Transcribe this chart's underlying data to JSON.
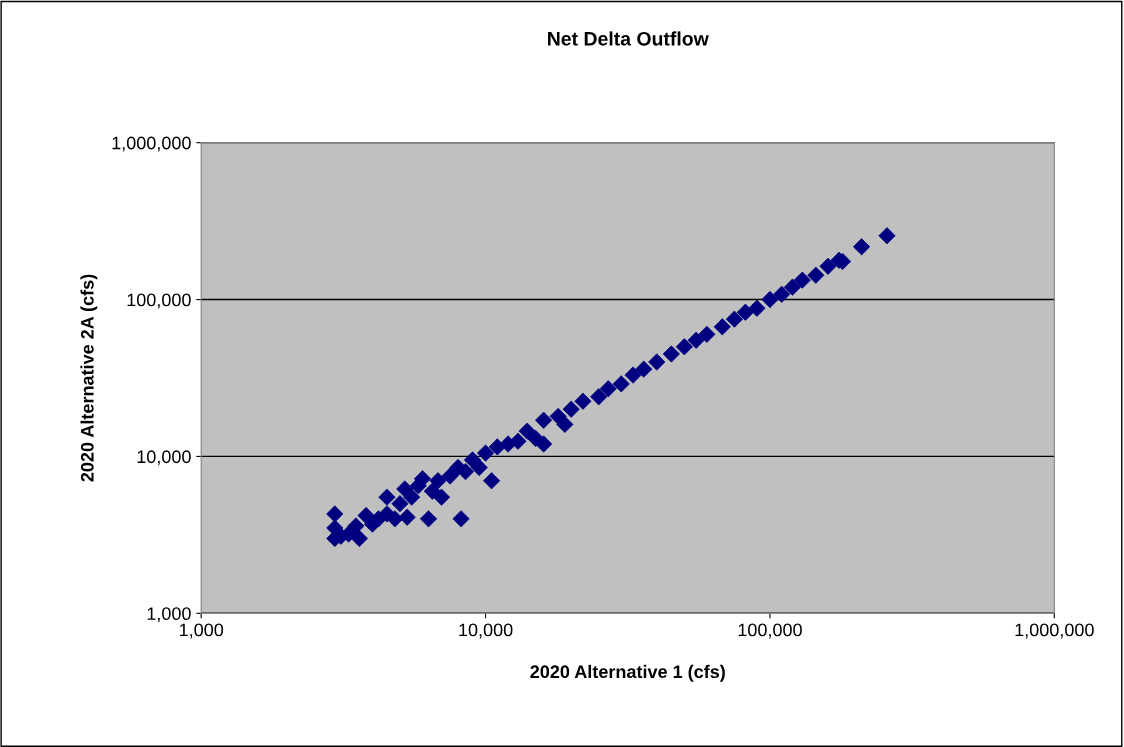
{
  "chart_data": {
    "type": "scatter",
    "title": "Net Delta Outflow",
    "xlabel": "2020 Alternative 1 (cfs)",
    "ylabel": "2020 Alternative 2A (cfs)",
    "log": "xy",
    "grid": "y",
    "marker": "diamond",
    "xlim": [
      1000,
      1000000
    ],
    "ylim": [
      1000,
      1000000
    ],
    "xticks": [
      {
        "value": 1000,
        "label": "1,000"
      },
      {
        "value": 10000,
        "label": "10,000"
      },
      {
        "value": 100000,
        "label": "100,000"
      },
      {
        "value": 1000000,
        "label": "1,000,000"
      }
    ],
    "yticks": [
      {
        "value": 1000,
        "label": "1,000"
      },
      {
        "value": 10000,
        "label": "10,000"
      },
      {
        "value": 100000,
        "label": "100,000"
      },
      {
        "value": 1000000,
        "label": "1,000,000"
      }
    ],
    "series": [
      {
        "color": "#000080",
        "x": [
          2950,
          2950,
          2950,
          3100,
          3300,
          3600,
          3500,
          3800,
          4000,
          4200,
          4500,
          4500,
          4800,
          5000,
          5200,
          5300,
          5500,
          5800,
          6000,
          6300,
          6500,
          6800,
          7000,
          7500,
          8000,
          8200,
          8500,
          9000,
          9500,
          10000,
          10500,
          11000,
          12000,
          13000,
          14000,
          15000,
          16000,
          16000,
          18000,
          19000,
          20000,
          22000,
          25000,
          27000,
          30000,
          33000,
          36000,
          40000,
          45000,
          50000,
          55000,
          60000,
          68000,
          75000,
          82000,
          90000,
          100000,
          110000,
          120000,
          130000,
          145000,
          160000,
          175000,
          180000,
          210000,
          258000
        ],
        "values": [
          3000,
          3500,
          4300,
          3100,
          3200,
          3000,
          3600,
          4200,
          3700,
          4000,
          5500,
          4300,
          4000,
          5000,
          6200,
          4100,
          5500,
          6500,
          7200,
          4000,
          6000,
          7000,
          5500,
          7500,
          8500,
          4000,
          8000,
          9500,
          8500,
          10500,
          7000,
          11500,
          12000,
          12500,
          14500,
          13000,
          12000,
          17000,
          18000,
          16000,
          20000,
          22500,
          24000,
          27000,
          29000,
          33000,
          36000,
          40000,
          45000,
          50000,
          55000,
          60000,
          67000,
          75000,
          83000,
          88000,
          100000,
          108000,
          120000,
          133000,
          143000,
          163000,
          178000,
          175000,
          217000,
          255000
        ]
      }
    ]
  }
}
